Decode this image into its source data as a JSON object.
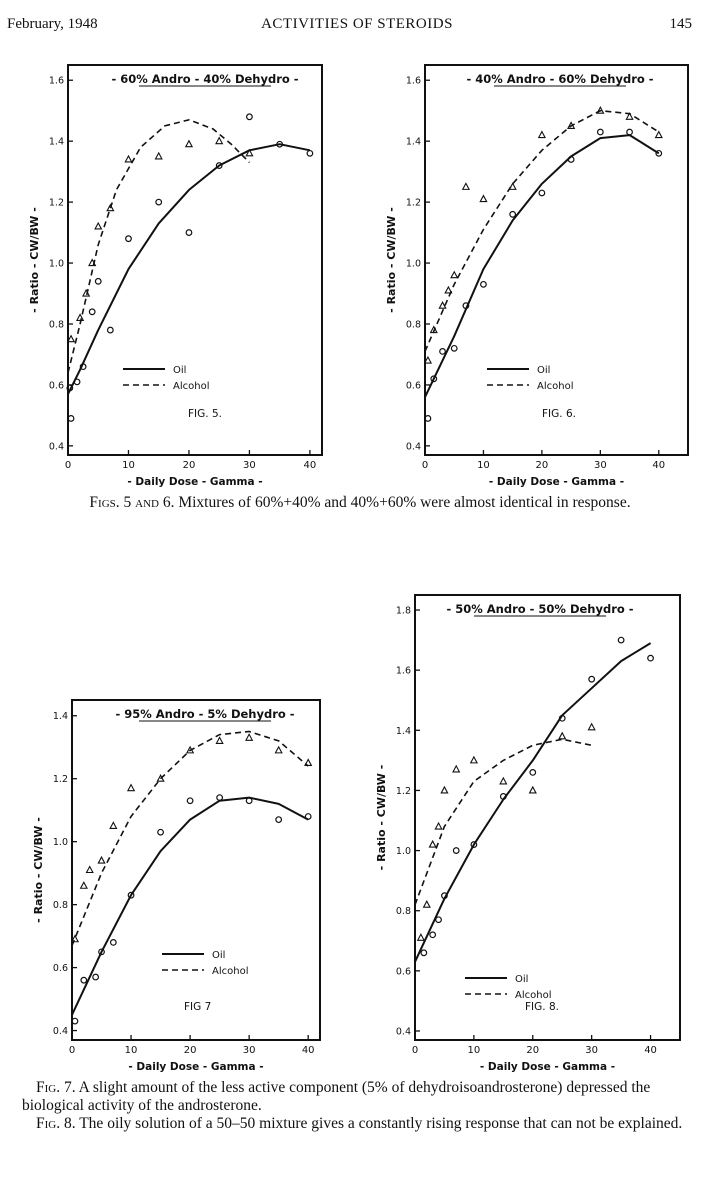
{
  "header": {
    "date": "February, 1948",
    "title": "ACTIVITIES OF STEROIDS",
    "page": "145"
  },
  "captions": {
    "fig56_label": "Figs. 5 and 6.",
    "fig56_text": "Mixtures of 60%+40% and 40%+60% were almost identical in response.",
    "fig7_label": "Fig. 7.",
    "fig7_text": "A slight amount of the less active component (5% of dehydroisoandrosterone) depressed the biological activity of the androsterone.",
    "fig8_label": "Fig. 8.",
    "fig8_text": "The oily solution of a 50–50 mixture gives a constantly rising response that can not be explained."
  },
  "chart_data": [
    {
      "type": "scatter",
      "fig_label": "FIG. 5.",
      "title": "- 60% Andro - 40% Dehydro -",
      "xlabel": "- Daily Dose - Gamma -",
      "ylabel": "- Ratio - CW/BW -",
      "xlim": [
        0,
        42
      ],
      "ylim": [
        0.37,
        1.65
      ],
      "xticks": [
        "0",
        "10",
        "20",
        "30",
        "40"
      ],
      "yticks": [
        "0.4",
        "0.6",
        "0.8",
        "1.0",
        "1.2",
        "1.4",
        "1.6"
      ],
      "legend": {
        "oil": "Oil",
        "alcohol": "Alcohol"
      },
      "oil_points": [
        [
          0.3,
          0.59
        ],
        [
          0.5,
          0.49
        ],
        [
          1.5,
          0.61
        ],
        [
          2.5,
          0.66
        ],
        [
          4,
          0.84
        ],
        [
          5,
          0.94
        ],
        [
          7,
          0.78
        ],
        [
          10,
          1.08
        ],
        [
          15,
          1.2
        ],
        [
          20,
          1.1
        ],
        [
          25,
          1.32
        ],
        [
          30,
          1.48
        ],
        [
          35,
          1.39
        ],
        [
          40,
          1.36
        ]
      ],
      "alcohol_points": [
        [
          0.5,
          0.75
        ],
        [
          2,
          0.82
        ],
        [
          3,
          0.9
        ],
        [
          4,
          1.0
        ],
        [
          5,
          1.12
        ],
        [
          7,
          1.18
        ],
        [
          10,
          1.34
        ],
        [
          15,
          1.35
        ],
        [
          20,
          1.39
        ],
        [
          25,
          1.4
        ],
        [
          30,
          1.36
        ]
      ],
      "oil_curve": [
        [
          0,
          0.57
        ],
        [
          2,
          0.65
        ],
        [
          5,
          0.78
        ],
        [
          10,
          0.98
        ],
        [
          15,
          1.13
        ],
        [
          20,
          1.24
        ],
        [
          25,
          1.32
        ],
        [
          30,
          1.37
        ],
        [
          35,
          1.39
        ],
        [
          40,
          1.37
        ]
      ],
      "alcohol_curve": [
        [
          0,
          0.64
        ],
        [
          2,
          0.8
        ],
        [
          5,
          1.06
        ],
        [
          8,
          1.24
        ],
        [
          12,
          1.38
        ],
        [
          16,
          1.45
        ],
        [
          20,
          1.47
        ],
        [
          24,
          1.44
        ],
        [
          27,
          1.39
        ],
        [
          30,
          1.33
        ]
      ]
    },
    {
      "type": "scatter",
      "fig_label": "FIG. 6.",
      "title": "- 40% Andro - 60% Dehydro -",
      "xlabel": "- Daily Dose - Gamma -",
      "ylabel": "- Ratio - CW/BW -",
      "xlim": [
        0,
        45
      ],
      "ylim": [
        0.37,
        1.65
      ],
      "xticks": [
        "0",
        "10",
        "20",
        "30",
        "40"
      ],
      "yticks": [
        "0.4",
        "0.6",
        "0.8",
        "1.0",
        "1.2",
        "1.4",
        "1.6"
      ],
      "legend": {
        "oil": "Oil",
        "alcohol": "Alcohol"
      },
      "oil_points": [
        [
          0.5,
          0.49
        ],
        [
          1.5,
          0.62
        ],
        [
          3,
          0.71
        ],
        [
          5,
          0.72
        ],
        [
          7,
          0.86
        ],
        [
          10,
          0.93
        ],
        [
          15,
          1.16
        ],
        [
          20,
          1.23
        ],
        [
          25,
          1.34
        ],
        [
          30,
          1.43
        ],
        [
          35,
          1.43
        ],
        [
          40,
          1.36
        ]
      ],
      "alcohol_points": [
        [
          0.5,
          0.68
        ],
        [
          1.5,
          0.78
        ],
        [
          3,
          0.86
        ],
        [
          4,
          0.91
        ],
        [
          5,
          0.96
        ],
        [
          7,
          1.25
        ],
        [
          10,
          1.21
        ],
        [
          15,
          1.25
        ],
        [
          20,
          1.42
        ],
        [
          25,
          1.45
        ],
        [
          30,
          1.5
        ],
        [
          35,
          1.48
        ],
        [
          40,
          1.42
        ]
      ],
      "oil_curve": [
        [
          0,
          0.56
        ],
        [
          5,
          0.76
        ],
        [
          10,
          0.98
        ],
        [
          15,
          1.14
        ],
        [
          20,
          1.26
        ],
        [
          25,
          1.35
        ],
        [
          30,
          1.41
        ],
        [
          35,
          1.42
        ],
        [
          40,
          1.36
        ]
      ],
      "alcohol_curve": [
        [
          0,
          0.71
        ],
        [
          5,
          0.93
        ],
        [
          10,
          1.11
        ],
        [
          15,
          1.26
        ],
        [
          20,
          1.37
        ],
        [
          25,
          1.45
        ],
        [
          30,
          1.5
        ],
        [
          35,
          1.49
        ],
        [
          40,
          1.43
        ]
      ]
    },
    {
      "type": "scatter",
      "fig_label": "FIG 7",
      "title": "- 95% Andro - 5% Dehydro -",
      "xlabel": "- Daily Dose - Gamma -",
      "ylabel": "- Ratio - CW/BW -",
      "xlim": [
        0,
        42
      ],
      "ylim": [
        0.37,
        1.45
      ],
      "xticks": [
        "0",
        "10",
        "20",
        "30",
        "40"
      ],
      "yticks": [
        "0.4",
        "0.6",
        "0.8",
        "1.0",
        "1.2",
        "1.4"
      ],
      "legend": {
        "oil": "Oil",
        "alcohol": "Alcohol"
      },
      "oil_points": [
        [
          0.5,
          0.43
        ],
        [
          2,
          0.56
        ],
        [
          4,
          0.57
        ],
        [
          5,
          0.65
        ],
        [
          7,
          0.68
        ],
        [
          10,
          0.83
        ],
        [
          15,
          1.03
        ],
        [
          20,
          1.13
        ],
        [
          25,
          1.14
        ],
        [
          30,
          1.13
        ],
        [
          35,
          1.07
        ],
        [
          40,
          1.08
        ]
      ],
      "alcohol_points": [
        [
          0.5,
          0.69
        ],
        [
          2,
          0.86
        ],
        [
          3,
          0.91
        ],
        [
          5,
          0.94
        ],
        [
          7,
          1.05
        ],
        [
          10,
          1.17
        ],
        [
          15,
          1.2
        ],
        [
          20,
          1.29
        ],
        [
          25,
          1.32
        ],
        [
          30,
          1.33
        ],
        [
          35,
          1.29
        ],
        [
          40,
          1.25
        ]
      ],
      "oil_curve": [
        [
          0,
          0.45
        ],
        [
          5,
          0.65
        ],
        [
          10,
          0.83
        ],
        [
          15,
          0.97
        ],
        [
          20,
          1.07
        ],
        [
          25,
          1.13
        ],
        [
          30,
          1.14
        ],
        [
          35,
          1.12
        ],
        [
          40,
          1.07
        ]
      ],
      "alcohol_curve": [
        [
          0,
          0.67
        ],
        [
          5,
          0.9
        ],
        [
          10,
          1.08
        ],
        [
          15,
          1.2
        ],
        [
          20,
          1.29
        ],
        [
          25,
          1.34
        ],
        [
          30,
          1.35
        ],
        [
          35,
          1.32
        ],
        [
          40,
          1.24
        ]
      ]
    },
    {
      "type": "scatter",
      "fig_label": "FIG. 8.",
      "title": "- 50% Andro - 50% Dehydro -",
      "xlabel": "- Daily Dose - Gamma -",
      "ylabel": "- Ratio - CW/BW -",
      "xlim": [
        0,
        45
      ],
      "ylim": [
        0.37,
        1.85
      ],
      "xticks": [
        "0",
        "10",
        "20",
        "30",
        "40"
      ],
      "yticks": [
        "0.4",
        "0.6",
        "0.8",
        "1.0",
        "1.2",
        "1.4",
        "1.6",
        "1.8"
      ],
      "legend": {
        "oil": "Oil",
        "alcohol": "Alcohol"
      },
      "oil_points": [
        [
          1.5,
          0.66
        ],
        [
          3,
          0.72
        ],
        [
          4,
          0.77
        ],
        [
          5,
          0.85
        ],
        [
          7,
          1.0
        ],
        [
          10,
          1.02
        ],
        [
          15,
          1.18
        ],
        [
          20,
          1.26
        ],
        [
          25,
          1.44
        ],
        [
          30,
          1.57
        ],
        [
          35,
          1.7
        ],
        [
          40,
          1.64
        ]
      ],
      "alcohol_points": [
        [
          1,
          0.71
        ],
        [
          2,
          0.82
        ],
        [
          3,
          1.02
        ],
        [
          4,
          1.08
        ],
        [
          5,
          1.2
        ],
        [
          7,
          1.27
        ],
        [
          10,
          1.3
        ],
        [
          15,
          1.23
        ],
        [
          20,
          1.2
        ],
        [
          25,
          1.38
        ],
        [
          30,
          1.41
        ]
      ],
      "oil_curve": [
        [
          0,
          0.63
        ],
        [
          5,
          0.84
        ],
        [
          10,
          1.02
        ],
        [
          15,
          1.17
        ],
        [
          20,
          1.3
        ],
        [
          25,
          1.45
        ],
        [
          30,
          1.54
        ],
        [
          35,
          1.63
        ],
        [
          40,
          1.69
        ]
      ],
      "alcohol_curve": [
        [
          0,
          0.82
        ],
        [
          5,
          1.08
        ],
        [
          10,
          1.23
        ],
        [
          15,
          1.3
        ],
        [
          20,
          1.35
        ],
        [
          25,
          1.37
        ],
        [
          30,
          1.35
        ]
      ]
    }
  ]
}
